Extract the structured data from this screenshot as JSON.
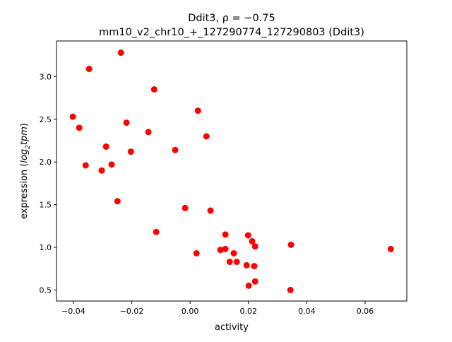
{
  "chart_data": {
    "type": "scatter",
    "title_line1": "Ddit3, ρ = −0.75",
    "title_line2": "mm10_v2_chr10_+_127290774_127290803 (Ddit3)",
    "xlabel": "activity",
    "ylabel_prefix": "expression (",
    "ylabel_math": "log",
    "ylabel_sub": "2",
    "ylabel_math2": "tpm",
    "ylabel_suffix": ")",
    "xlim": [
      -0.0458,
      0.0743
    ],
    "ylim": [
      0.371,
      3.417
    ],
    "xticks": [
      -0.04,
      -0.02,
      0.0,
      0.02,
      0.04,
      0.06
    ],
    "xtick_labels": [
      "−0.04",
      "−0.02",
      "0.00",
      "0.02",
      "0.04",
      "0.06"
    ],
    "yticks": [
      0.5,
      1.0,
      1.5,
      2.0,
      2.5,
      3.0
    ],
    "ytick_labels": [
      "0.5",
      "1.0",
      "1.5",
      "2.0",
      "2.5",
      "3.0"
    ],
    "grid": false,
    "marker_color": "#ff0000",
    "points": [
      [
        -0.0402,
        2.53
      ],
      [
        -0.0237,
        3.28
      ],
      [
        -0.0346,
        3.09
      ],
      [
        -0.0123,
        2.85
      ],
      [
        -0.038,
        2.4
      ],
      [
        -0.0218,
        2.46
      ],
      [
        0.0027,
        2.6
      ],
      [
        -0.0143,
        2.35
      ],
      [
        0.0056,
        2.3
      ],
      [
        -0.0288,
        2.18
      ],
      [
        -0.0203,
        2.12
      ],
      [
        -0.0051,
        2.14
      ],
      [
        -0.0358,
        1.96
      ],
      [
        -0.0303,
        1.9
      ],
      [
        -0.0269,
        1.97
      ],
      [
        -0.0249,
        1.54
      ],
      [
        -0.0017,
        1.46
      ],
      [
        0.007,
        1.43
      ],
      [
        -0.0116,
        1.18
      ],
      [
        0.0121,
        1.15
      ],
      [
        0.0199,
        1.14
      ],
      [
        0.0213,
        1.07
      ],
      [
        0.0223,
        1.01
      ],
      [
        0.0346,
        1.03
      ],
      [
        0.0688,
        0.98
      ],
      [
        0.0022,
        0.93
      ],
      [
        0.0104,
        0.97
      ],
      [
        0.0121,
        0.98
      ],
      [
        0.015,
        0.93
      ],
      [
        0.0136,
        0.83
      ],
      [
        0.016,
        0.83
      ],
      [
        0.0194,
        0.79
      ],
      [
        0.022,
        0.78
      ],
      [
        0.0201,
        0.55
      ],
      [
        0.0223,
        0.6
      ],
      [
        0.0344,
        0.5
      ]
    ]
  }
}
